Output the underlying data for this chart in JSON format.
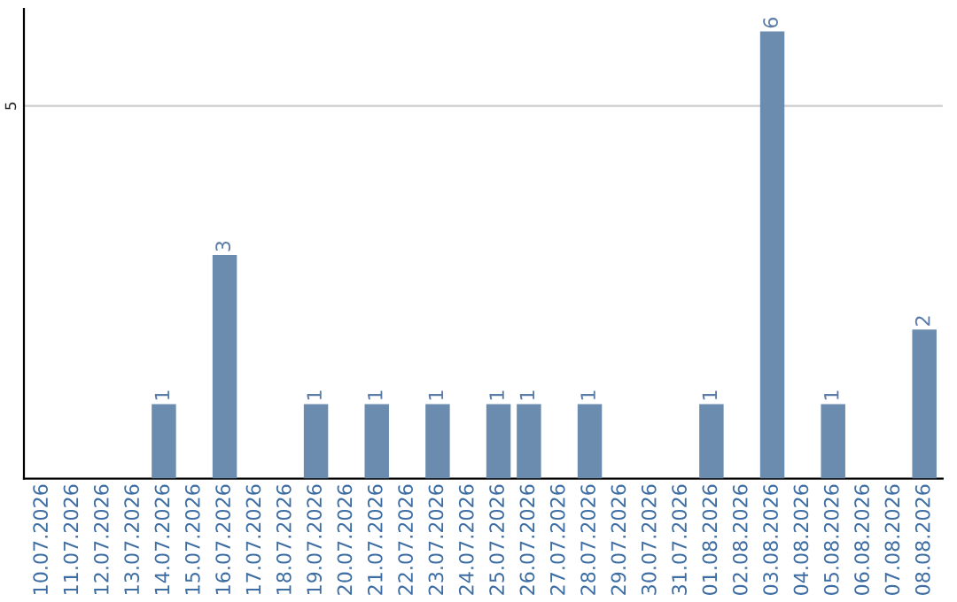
{
  "chart_data": {
    "type": "bar",
    "categories": [
      "10.07.2026",
      "11.07.2026",
      "12.07.2026",
      "13.07.2026",
      "14.07.2026",
      "15.07.2026",
      "16.07.2026",
      "17.07.2026",
      "18.07.2026",
      "19.07.2026",
      "20.07.2026",
      "21.07.2026",
      "22.07.2026",
      "23.07.2026",
      "24.07.2026",
      "25.07.2026",
      "26.07.2026",
      "27.07.2026",
      "28.07.2026",
      "29.07.2026",
      "30.07.2026",
      "31.07.2026",
      "01.08.2026",
      "02.08.2026",
      "03.08.2026",
      "04.08.2026",
      "05.08.2026",
      "06.08.2026",
      "07.08.2026",
      "08.08.2026"
    ],
    "values": [
      0,
      0,
      0,
      0,
      1,
      0,
      3,
      0,
      0,
      1,
      0,
      1,
      0,
      1,
      0,
      1,
      1,
      0,
      1,
      0,
      0,
      0,
      1,
      0,
      6,
      0,
      1,
      0,
      0,
      2
    ],
    "value_labels": [
      null,
      null,
      null,
      null,
      "1",
      null,
      "3",
      null,
      null,
      "1",
      null,
      "1",
      null,
      "1",
      null,
      "1",
      "1",
      null,
      "1",
      null,
      null,
      null,
      "1",
      null,
      "6",
      null,
      "1",
      null,
      null,
      "2"
    ],
    "color": "#6b8cae",
    "ylim": [
      0,
      6.3
    ],
    "yticks": [
      5
    ],
    "grid": "y"
  }
}
